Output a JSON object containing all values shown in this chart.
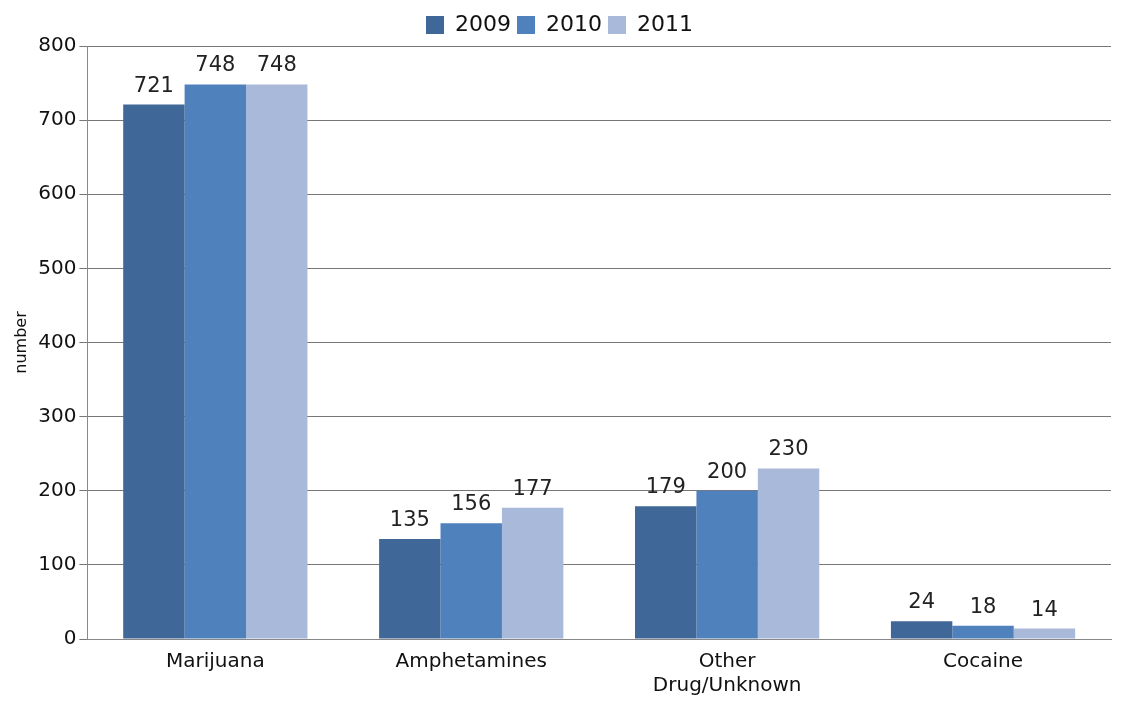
{
  "chart_data": {
    "type": "bar",
    "ylabel": "number",
    "categories": [
      "Marijuana",
      "Amphetamines",
      "Other Drug/Unknown",
      "Cocaine"
    ],
    "series": [
      {
        "name": "2009",
        "color": "#3f6797",
        "values": [
          721,
          135,
          179,
          24
        ]
      },
      {
        "name": "2010",
        "color": "#4f81bd",
        "values": [
          748,
          156,
          200,
          18
        ]
      },
      {
        "name": "2011",
        "color": "#a9b9d9",
        "values": [
          748,
          177,
          230,
          14
        ]
      }
    ],
    "ylim": [
      0,
      800
    ],
    "yticks": [
      0,
      100,
      200,
      300,
      400,
      500,
      600,
      700,
      800
    ],
    "grid": "y",
    "legend": "top",
    "data_labels": true
  }
}
